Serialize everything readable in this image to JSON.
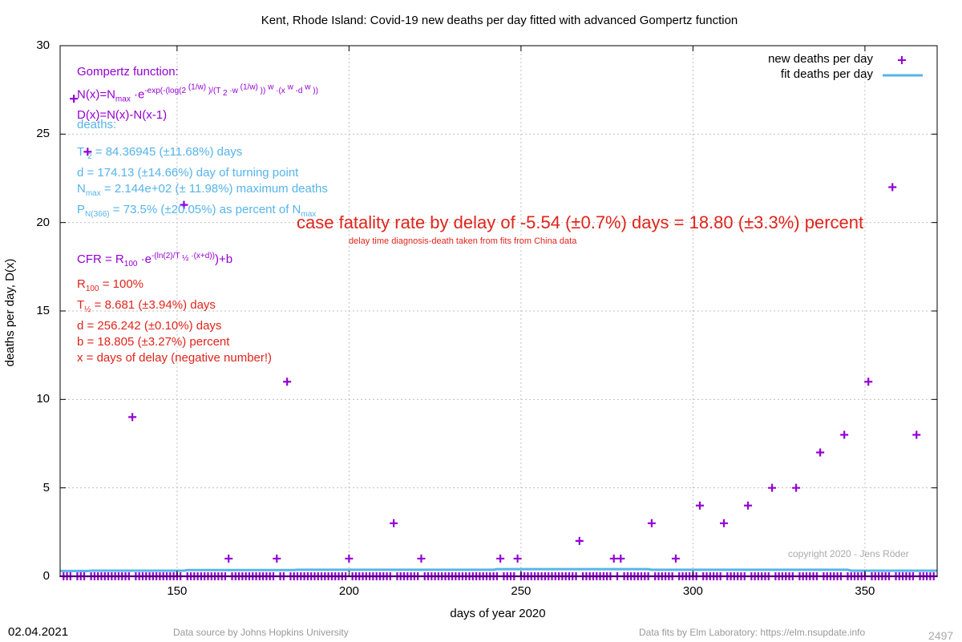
{
  "title": "Kent,  Rhode Island: Covid-19 new deaths per day fitted with advanced Gompertz function",
  "footer": {
    "date": "02.04.2021",
    "data_source": "Data source by Johns Hopkins University",
    "data_fits": "Data fits by Elm Laboratory: https://elm.nsupdate.info",
    "number": "2497",
    "copyright": "copyright 2020 - Jens Röder"
  },
  "annotations": {
    "gompertz_title": "Gompertz function:",
    "deaths_title": "deaths:",
    "deaths_d": "d = 174.13 (±14.66%) day of turning point",
    "cfr_r100": "= 100%",
    "cfr_d": "d = 256.242 (±0.10%) days",
    "cfr_b": "b = 18.805 (±3.27%) percent",
    "cfr_x": "x = days of delay (negative number!)",
    "cfr_big": "case fatality rate by delay of -5.54 (±0.7%) days = 18.80 (±3.3%) percent",
    "cfr_small": "delay time diagnosis-death taken from fits from China data"
  },
  "colors": {
    "data": "#9400d3",
    "fit": "#56b4e9",
    "cfr": "#e0241b",
    "grid": "#c0c0c0"
  },
  "chart_data": {
    "type": "scatter",
    "title": "Kent,  Rhode Island: Covid-19 new deaths per day fitted with advanced Gompertz function",
    "xlabel": "days of year 2020",
    "ylabel": "deaths per day, D(x)",
    "xlim": [
      116,
      371
    ],
    "ylim": [
      0,
      30
    ],
    "xticks": [
      150,
      200,
      250,
      300,
      350
    ],
    "yticks": [
      0,
      5,
      10,
      15,
      20,
      25,
      30
    ],
    "grid": true,
    "legend_position": "top-right",
    "series": [
      {
        "name": "new deaths per day",
        "marker": "plus",
        "points": [
          [
            120,
            27
          ],
          [
            124,
            24
          ],
          [
            137,
            9
          ],
          [
            152,
            21
          ],
          [
            165,
            1
          ],
          [
            179,
            1
          ],
          [
            182,
            11
          ],
          [
            200,
            1
          ],
          [
            213,
            3
          ],
          [
            221,
            1
          ],
          [
            244,
            1
          ],
          [
            249,
            1
          ],
          [
            267,
            2
          ],
          [
            277,
            1
          ],
          [
            279,
            1
          ],
          [
            288,
            3
          ],
          [
            295,
            1
          ],
          [
            302,
            4
          ],
          [
            309,
            3
          ],
          [
            316,
            4
          ],
          [
            323,
            5
          ],
          [
            330,
            5
          ],
          [
            337,
            7
          ],
          [
            344,
            8
          ],
          [
            351,
            11
          ],
          [
            358,
            22
          ],
          [
            365,
            8
          ]
        ],
        "zero_days": [
          [
            117,
            119
          ],
          [
            121,
            123
          ],
          [
            125,
            136
          ],
          [
            138,
            151
          ],
          [
            153,
            164
          ],
          [
            166,
            178
          ],
          [
            180,
            181
          ],
          [
            183,
            199
          ],
          [
            201,
            212
          ],
          [
            214,
            220
          ],
          [
            222,
            243
          ],
          [
            245,
            248
          ],
          [
            250,
            266
          ],
          [
            268,
            276
          ],
          [
            278,
            278
          ],
          [
            280,
            287
          ],
          [
            289,
            294
          ],
          [
            296,
            301
          ],
          [
            303,
            308
          ],
          [
            310,
            315
          ],
          [
            317,
            322
          ],
          [
            324,
            329
          ],
          [
            331,
            336
          ],
          [
            338,
            343
          ],
          [
            345,
            350
          ],
          [
            352,
            357
          ],
          [
            359,
            364
          ],
          [
            366,
            370
          ]
        ]
      },
      {
        "name": "fit deaths per day",
        "style": "line",
        "points": [
          [
            116,
            0.3
          ],
          [
            124,
            0.3
          ],
          [
            125,
            0.32
          ],
          [
            152,
            0.32
          ],
          [
            153,
            0.35
          ],
          [
            184,
            0.35
          ],
          [
            185,
            0.37
          ],
          [
            242,
            0.37
          ],
          [
            243,
            0.4
          ],
          [
            287,
            0.4
          ],
          [
            288,
            0.37
          ],
          [
            345,
            0.37
          ],
          [
            346,
            0.32
          ],
          [
            371,
            0.32
          ]
        ]
      }
    ]
  }
}
